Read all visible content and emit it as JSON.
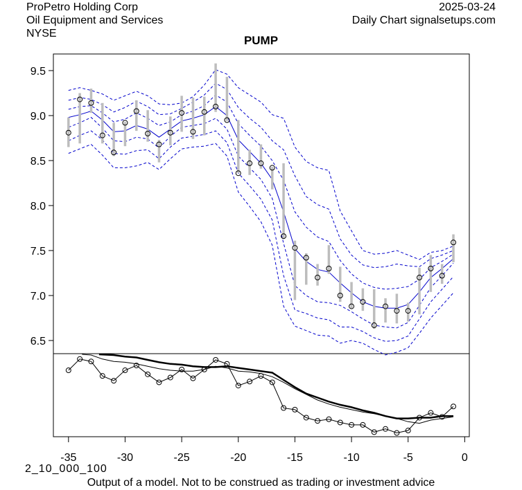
{
  "header": {
    "company": "ProPetro Holding Corp",
    "sector": "Oil Equipment and Services",
    "exchange": "NYSE",
    "date": "2025-03-24",
    "source": "Daily Chart signalsetups.com"
  },
  "footer": {
    "code": "2_10_000_100",
    "disclaimer": "Output of a model. Not to be construed as trading or investment advice"
  },
  "colors": {
    "band": "#0000cc",
    "range_bar": "#bdbdbd",
    "lower_lines": "#000000"
  },
  "chart_data": {
    "type": "line",
    "title": "PUMP",
    "xlabel": "",
    "ylabel": "",
    "xlim": [
      -36.3,
      0.4
    ],
    "ylim": [
      6.36,
      9.69
    ],
    "x_ticks": [
      -35,
      -30,
      -25,
      -20,
      -15,
      -10,
      -5,
      0
    ],
    "y_ticks": [
      6.5,
      7.0,
      7.5,
      8.0,
      8.5,
      9.0,
      9.5
    ],
    "y_tick_labels": [
      "6.5",
      "7.0",
      "7.5",
      "8.0",
      "8.5",
      "9.0",
      "9.5"
    ],
    "x_tick_labels": [
      "-35",
      "-30",
      "-25",
      "-20",
      "-15",
      "-10",
      "-5",
      "0"
    ],
    "grid": false,
    "x": [
      -35,
      -34,
      -33,
      -32,
      -31,
      -30,
      -29,
      -28,
      -27,
      -26,
      -25,
      -24,
      -23,
      -22,
      -21,
      -20,
      -19,
      -18,
      -17,
      -16,
      -15,
      -14,
      -13,
      -12,
      -11,
      -10,
      -9,
      -8,
      -7,
      -6,
      -5,
      -4,
      -3,
      -2,
      -1
    ],
    "close": [
      8.81,
      9.18,
      9.14,
      8.78,
      8.59,
      8.92,
      9.05,
      8.8,
      8.68,
      8.81,
      9.03,
      8.82,
      9.04,
      9.1,
      8.95,
      8.36,
      8.47,
      8.47,
      8.42,
      7.66,
      7.53,
      7.42,
      7.2,
      7.3,
      7.0,
      6.88,
      6.93,
      6.67,
      6.88,
      6.83,
      6.83,
      7.2,
      7.3,
      7.22,
      7.59
    ],
    "high": [
      8.98,
      9.25,
      9.3,
      9.14,
      8.92,
      8.93,
      9.17,
      9.06,
      8.73,
      8.99,
      9.22,
      9.2,
      9.21,
      9.58,
      9.43,
      8.95,
      8.62,
      8.68,
      8.43,
      8.47,
      7.61,
      7.47,
      7.35,
      7.56,
      7.32,
      7.15,
      7.08,
      7.07,
      6.97,
      7.02,
      6.92,
      7.31,
      7.45,
      7.35,
      7.68
    ],
    "low": [
      8.65,
      8.69,
      9.03,
      8.69,
      8.55,
      8.66,
      8.83,
      8.71,
      8.48,
      8.67,
      8.82,
      8.74,
      8.78,
      9.04,
      8.94,
      8.36,
      8.34,
      8.41,
      8.18,
      7.63,
      6.95,
      7.12,
      7.11,
      7.24,
      6.93,
      6.86,
      6.83,
      6.63,
      6.7,
      6.69,
      6.71,
      6.79,
      7.04,
      7.13,
      7.37
    ],
    "mid": [
      8.98,
      9.01,
      9.05,
      8.95,
      8.82,
      8.83,
      8.89,
      8.85,
      8.76,
      8.85,
      8.94,
      8.97,
      9.01,
      9.1,
      9.0,
      8.73,
      8.6,
      8.47,
      8.29,
      7.93,
      7.52,
      7.38,
      7.29,
      7.26,
      7.14,
      7.03,
      6.93,
      6.88,
      6.86,
      6.86,
      6.9,
      7.04,
      7.2,
      7.3,
      7.41
    ],
    "band_upper_3": [
      9.28,
      9.31,
      9.28,
      9.24,
      9.17,
      9.22,
      9.27,
      9.22,
      9.13,
      9.12,
      9.14,
      9.21,
      9.34,
      9.51,
      9.46,
      9.31,
      9.23,
      9.15,
      9.01,
      8.97,
      8.65,
      8.49,
      8.42,
      8.39,
      7.94,
      7.72,
      7.5,
      7.46,
      7.47,
      7.5,
      7.45,
      7.4,
      7.48,
      7.5,
      7.55
    ],
    "band_upper_2": [
      9.17,
      9.2,
      9.18,
      9.12,
      9.04,
      9.09,
      9.16,
      9.1,
      9.01,
      9.02,
      9.08,
      9.15,
      9.23,
      9.36,
      9.29,
      9.09,
      8.97,
      8.87,
      8.72,
      8.62,
      8.33,
      8.1,
      8.01,
      7.96,
      7.63,
      7.45,
      7.34,
      7.31,
      7.32,
      7.35,
      7.33,
      7.32,
      7.41,
      7.45,
      7.5
    ],
    "band_upper_1": [
      9.07,
      9.1,
      9.11,
      9.03,
      8.93,
      8.96,
      9.03,
      8.97,
      8.89,
      8.93,
      9.01,
      9.05,
      9.11,
      9.23,
      9.15,
      8.91,
      8.78,
      8.66,
      8.5,
      8.28,
      7.93,
      7.76,
      7.65,
      7.6,
      7.39,
      7.24,
      7.14,
      7.09,
      7.07,
      7.08,
      7.1,
      7.18,
      7.31,
      7.38,
      7.46
    ],
    "band_lower_1": [
      8.87,
      8.92,
      8.98,
      8.86,
      8.72,
      8.71,
      8.76,
      8.74,
      8.64,
      8.77,
      8.87,
      8.89,
      8.91,
      8.97,
      8.85,
      8.55,
      8.42,
      8.29,
      8.08,
      7.58,
      7.11,
      7.0,
      6.93,
      6.92,
      6.89,
      6.82,
      6.74,
      6.67,
      6.65,
      6.64,
      6.7,
      6.89,
      7.09,
      7.22,
      7.36
    ],
    "band_lower_2": [
      8.72,
      8.78,
      8.83,
      8.73,
      8.58,
      8.57,
      8.61,
      8.62,
      8.52,
      8.65,
      8.75,
      8.77,
      8.79,
      8.83,
      8.7,
      8.36,
      8.22,
      8.07,
      7.84,
      7.22,
      6.84,
      6.8,
      6.75,
      6.73,
      6.65,
      6.65,
      6.6,
      6.53,
      6.49,
      6.5,
      6.55,
      6.74,
      6.93,
      7.07,
      7.21
    ],
    "band_lower_3": [
      8.58,
      8.63,
      8.68,
      8.56,
      8.42,
      8.42,
      8.44,
      8.48,
      8.4,
      8.52,
      8.63,
      8.65,
      8.66,
      8.69,
      8.55,
      8.15,
      7.99,
      7.82,
      7.56,
      6.88,
      6.66,
      6.61,
      6.56,
      6.55,
      6.47,
      6.5,
      6.47,
      6.4,
      6.34,
      6.37,
      6.42,
      6.58,
      6.75,
      6.89,
      7.03
    ],
    "lower_panel": {
      "units": "relative (0 = panel bottom, 1 = panel top)",
      "close_line": [
        0.81,
        0.95,
        0.92,
        0.74,
        0.68,
        0.81,
        0.87,
        0.76,
        0.66,
        0.72,
        0.82,
        0.71,
        0.82,
        0.94,
        0.89,
        0.62,
        0.67,
        0.74,
        0.66,
        0.34,
        0.32,
        0.22,
        0.18,
        0.2,
        0.16,
        0.13,
        0.13,
        0.04,
        0.08,
        0.03,
        0.06,
        0.22,
        0.28,
        0.23,
        0.36
      ],
      "thin_line": [
        null,
        null,
        1.0,
        0.95,
        0.92,
        0.91,
        0.89,
        0.86,
        0.83,
        0.81,
        0.8,
        0.8,
        0.82,
        0.86,
        0.84,
        0.8,
        0.79,
        0.77,
        0.73,
        0.66,
        0.58,
        0.51,
        0.44,
        0.39,
        0.35,
        0.32,
        0.29,
        0.27,
        0.24,
        0.21,
        0.17,
        0.15,
        0.19,
        0.21,
        0.23
      ],
      "thick_line": [
        null,
        null,
        null,
        null,
        1.0,
        0.98,
        0.97,
        0.94,
        0.91,
        0.89,
        0.88,
        0.86,
        0.85,
        0.85,
        0.86,
        0.84,
        0.82,
        0.8,
        0.78,
        0.69,
        0.6,
        0.52,
        0.47,
        0.42,
        0.38,
        0.35,
        0.31,
        0.28,
        0.24,
        0.21,
        0.21,
        0.22,
        0.22,
        0.24,
        0.24
      ]
    }
  }
}
